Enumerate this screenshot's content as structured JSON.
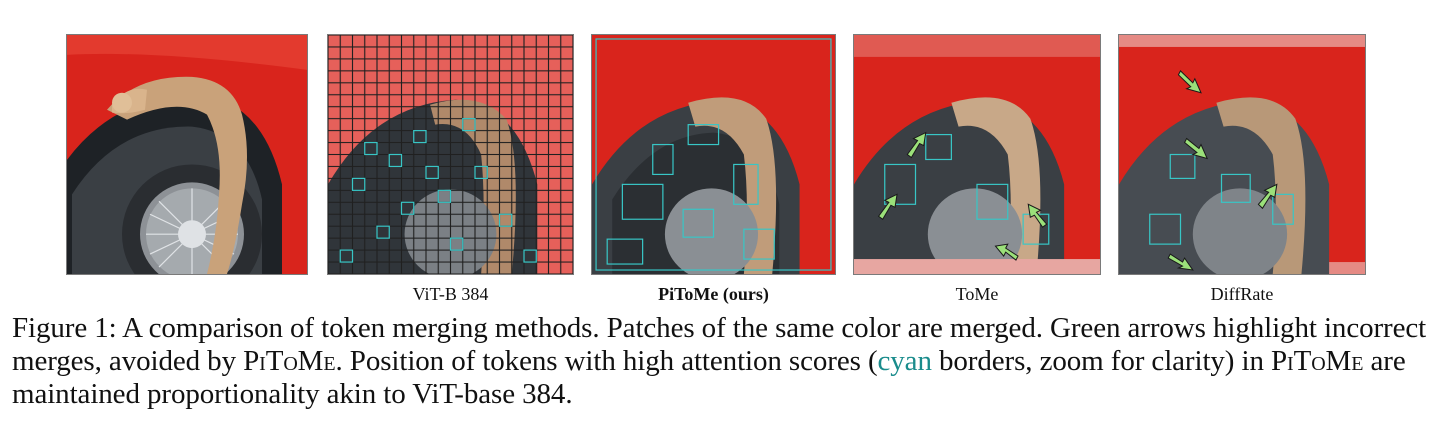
{
  "figure": {
    "panels": [
      {
        "id": "original",
        "label": ""
      },
      {
        "id": "vit",
        "label": "ViT-B 384"
      },
      {
        "id": "pitome",
        "label": "PiToMe (ours)"
      },
      {
        "id": "tome",
        "label": "ToMe"
      },
      {
        "id": "diffrate",
        "label": "DiffRate"
      }
    ],
    "caption": {
      "prefix": "Figure 1: A comparison of token merging methods. Patches of the same color are merged. Green arrows highlight incorrect merges, avoided by ",
      "method_1": "PiToMe",
      "middle": ". Position of tokens with high attention scores (",
      "cyan_word": "cyan",
      "after_cyan": " borders, zoom for clarity) in ",
      "method_2": "PiToMe",
      "suffix": " are maintained proportionality akin to ViT-base 384."
    },
    "colors": {
      "background_red": "#d9241c",
      "tire": "#2e3236",
      "cat_fur": "#c9a27a",
      "attention_border": "#38c6c6",
      "arrow": "#9be07a"
    },
    "icons": [
      "arrow-icon"
    ]
  }
}
